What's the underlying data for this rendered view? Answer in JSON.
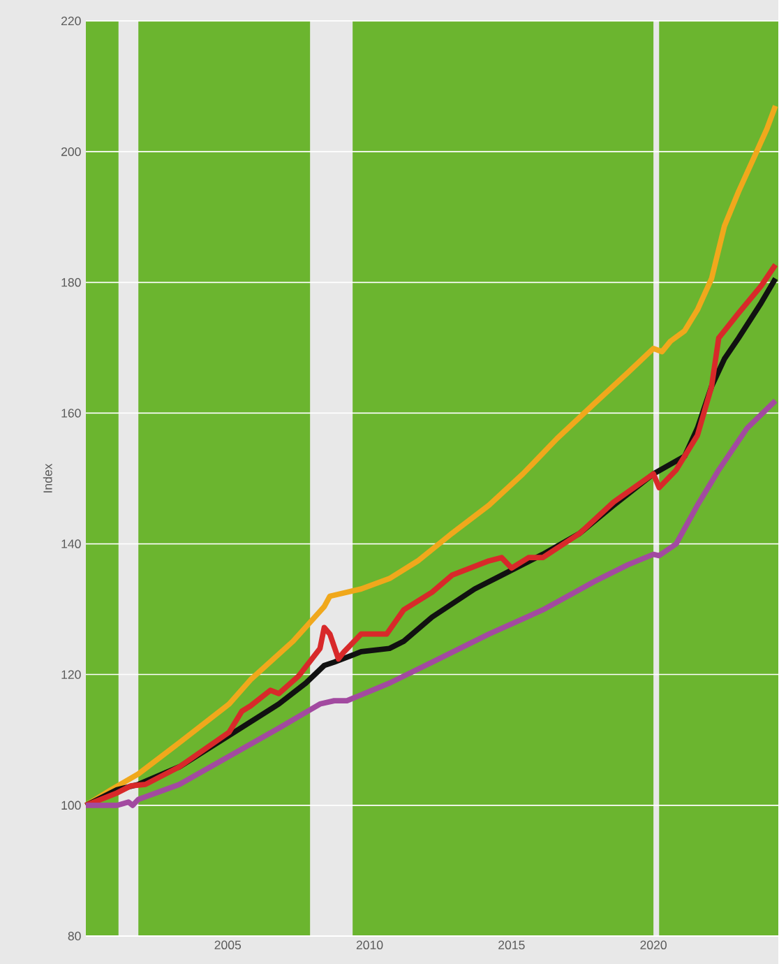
{
  "chart_data": {
    "type": "line",
    "ylabel": "Index",
    "xlim": [
      2000,
      2024.4
    ],
    "ylim": [
      80,
      220
    ],
    "xticks": [
      2005,
      2010,
      2015,
      2020
    ],
    "yticks": [
      80,
      100,
      120,
      140,
      160,
      180,
      200,
      220
    ],
    "grid": "y",
    "marker": "none",
    "line_style": "solid",
    "bands": [
      {
        "axis": "x",
        "from": 2000,
        "to": 2001.15,
        "color": "#6bb52f"
      },
      {
        "axis": "x",
        "from": 2001.85,
        "to": 2007.9,
        "color": "#6bb52f"
      },
      {
        "axis": "x",
        "from": 2009.4,
        "to": 2020.0,
        "color": "#6bb52f"
      },
      {
        "axis": "x",
        "from": 2020.2,
        "to": 2024.4,
        "color": "#6bb52f"
      }
    ],
    "series": [
      {
        "color": "#f0a81c",
        "x": [
          2000.0,
          2000.9,
          2001.85,
          2003.3,
          2005.05,
          2005.8,
          2007.3,
          2008.4,
          2008.6,
          2009.1,
          2009.7,
          2010.7,
          2011.7,
          2012.9,
          2014.2,
          2015.4,
          2016.6,
          2017.9,
          2019.1,
          2020.0,
          2020.3,
          2020.6,
          2021.1,
          2021.55,
          2022.05,
          2022.5,
          2023.0,
          2023.5,
          2024.0,
          2024.3
        ],
        "values": [
          100,
          102.4,
          104.8,
          109.6,
          115.5,
          119.2,
          125.1,
          130.4,
          132.0,
          132.5,
          133.1,
          134.7,
          137.4,
          141.6,
          145.9,
          150.7,
          156.1,
          161.4,
          166.2,
          169.9,
          169.4,
          171.0,
          172.6,
          175.8,
          180.6,
          188.6,
          193.9,
          198.7,
          203.5,
          207.0
        ]
      },
      {
        "color": "#111111",
        "x": [
          2000.0,
          2001.1,
          2001.85,
          2003.3,
          2005.05,
          2006.8,
          2007.75,
          2008.4,
          2008.75,
          2009.7,
          2010.7,
          2011.2,
          2012.2,
          2013.7,
          2014.65,
          2016.1,
          2017.4,
          2018.6,
          2020.0,
          2021.1,
          2021.55,
          2022.05,
          2022.5,
          2023.0,
          2023.8,
          2024.3
        ],
        "values": [
          100,
          102.4,
          103.2,
          105.9,
          110.7,
          115.5,
          118.7,
          121.4,
          121.9,
          123.5,
          124.0,
          125.1,
          128.8,
          133.1,
          135.2,
          138.4,
          141.6,
          145.9,
          150.7,
          153.4,
          157.7,
          164.1,
          168.3,
          171.5,
          176.9,
          180.6
        ]
      },
      {
        "color": "#d8292a",
        "x": [
          2000.0,
          2001.1,
          2001.6,
          2002.1,
          2003.3,
          2005.05,
          2005.5,
          2005.8,
          2006.5,
          2006.8,
          2007.5,
          2008.25,
          2008.4,
          2008.6,
          2008.9,
          2009.1,
          2009.7,
          2010.6,
          2011.2,
          2012.2,
          2012.9,
          2014.2,
          2014.65,
          2015.0,
          2015.6,
          2016.1,
          2017.4,
          2018.6,
          2020.0,
          2020.2,
          2020.8,
          2021.55,
          2022.05,
          2022.3,
          2023.0,
          2023.8,
          2024.3
        ],
        "values": [
          100,
          101.9,
          103.0,
          103.2,
          105.9,
          111.2,
          114.4,
          115.2,
          117.6,
          117.1,
          119.8,
          124.0,
          127.2,
          126.2,
          122.4,
          123.5,
          126.2,
          126.2,
          129.9,
          132.6,
          135.2,
          137.4,
          137.9,
          136.3,
          137.9,
          137.9,
          141.6,
          146.4,
          150.7,
          148.6,
          151.3,
          156.6,
          164.1,
          171.5,
          175.3,
          179.5,
          182.7
        ]
      },
      {
        "color": "#a24aa0",
        "x": [
          2000.0,
          2001.1,
          2001.5,
          2001.65,
          2001.85,
          2003.3,
          2005.05,
          2006.8,
          2008.25,
          2008.75,
          2009.2,
          2010.7,
          2012.2,
          2014.2,
          2016.1,
          2017.9,
          2019.1,
          2020.0,
          2020.2,
          2020.8,
          2021.55,
          2022.3,
          2023.3,
          2024.3
        ],
        "values": [
          100,
          100.0,
          100.5,
          100.0,
          100.9,
          103.2,
          107.5,
          111.8,
          115.5,
          116.0,
          116.0,
          118.7,
          121.9,
          126.2,
          129.9,
          134.2,
          136.8,
          138.4,
          138.2,
          140.0,
          145.9,
          151.3,
          157.7,
          161.9
        ]
      }
    ]
  }
}
